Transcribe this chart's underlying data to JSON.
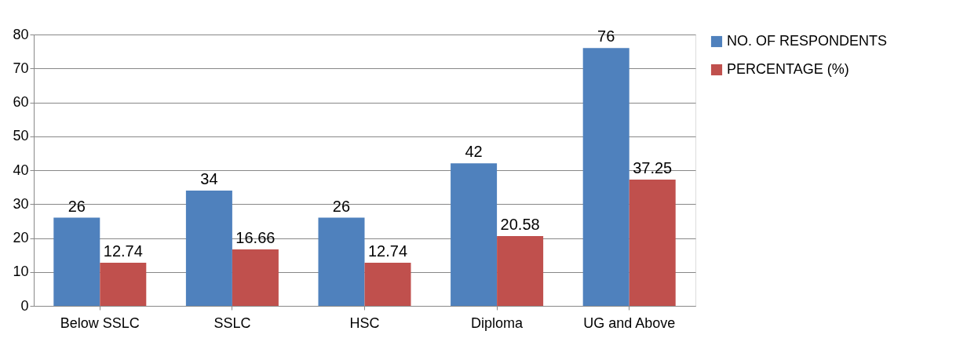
{
  "chart_data": {
    "type": "bar",
    "categories": [
      "Below SSLC",
      "SSLC",
      "HSC",
      "Diploma",
      "UG and Above"
    ],
    "series": [
      {
        "name": "NO. OF RESPONDENTS",
        "color": "#4f81bd",
        "values": [
          26,
          34,
          26,
          42,
          76
        ]
      },
      {
        "name": "PERCENTAGE (%)",
        "color": "#c0504d",
        "values": [
          12.74,
          16.66,
          12.74,
          20.58,
          37.25
        ]
      }
    ],
    "ylim": [
      0,
      80
    ],
    "yticks": [
      0,
      10,
      20,
      30,
      40,
      50,
      60,
      70,
      80
    ],
    "grid": "y",
    "legend": "right",
    "data_labels": true
  }
}
